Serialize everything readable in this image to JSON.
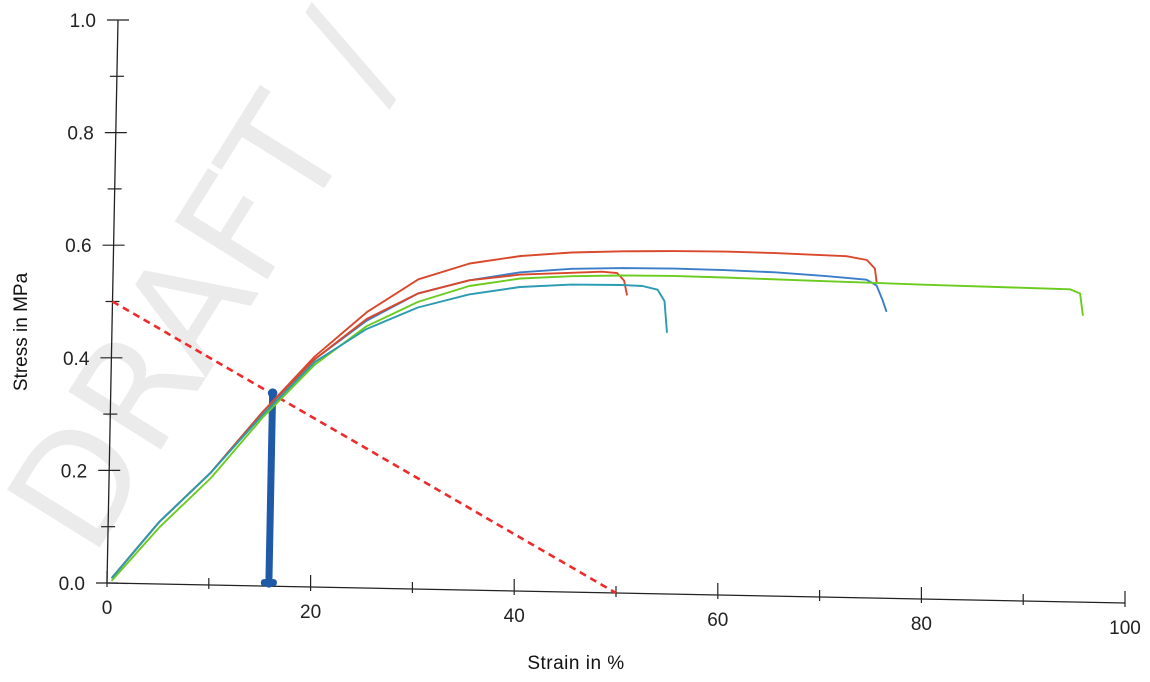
{
  "chart_data": {
    "type": "line",
    "xlabel": "Strain in %",
    "ylabel": "Stress in MPa",
    "xlim": [
      0,
      100
    ],
    "ylim": [
      0,
      1.0
    ],
    "x_ticks": [
      "0",
      "20",
      "40",
      "60",
      "80",
      "100"
    ],
    "y_ticks": [
      "0.0",
      "0.2",
      "0.4",
      "0.6",
      "0.8",
      "1.0"
    ],
    "grid": false,
    "watermark": "DRAFT / CO",
    "series": [
      {
        "color": "#d9482b",
        "points": [
          [
            0.5,
            0.01
          ],
          [
            5,
            0.11
          ],
          [
            10,
            0.2
          ],
          [
            15,
            0.31
          ],
          [
            20,
            0.41
          ],
          [
            25,
            0.49
          ],
          [
            30,
            0.55
          ],
          [
            35,
            0.58
          ],
          [
            40,
            0.595
          ],
          [
            45,
            0.603
          ],
          [
            50,
            0.607
          ],
          [
            55,
            0.609
          ],
          [
            60,
            0.61
          ],
          [
            65,
            0.609
          ],
          [
            70,
            0.607
          ],
          [
            72,
            0.606
          ],
          [
            74,
            0.6
          ],
          [
            74.8,
            0.585
          ],
          [
            75,
            0.56
          ]
        ]
      },
      {
        "color": "#3a7dc9",
        "points": [
          [
            0.5,
            0.01
          ],
          [
            5,
            0.11
          ],
          [
            10,
            0.2
          ],
          [
            15,
            0.31
          ],
          [
            20,
            0.405
          ],
          [
            25,
            0.475
          ],
          [
            30,
            0.525
          ],
          [
            35,
            0.55
          ],
          [
            40,
            0.566
          ],
          [
            45,
            0.574
          ],
          [
            50,
            0.577
          ],
          [
            55,
            0.578
          ],
          [
            60,
            0.577
          ],
          [
            65,
            0.575
          ],
          [
            70,
            0.57
          ],
          [
            74,
            0.565
          ],
          [
            75,
            0.555
          ],
          [
            75.6,
            0.53
          ],
          [
            76,
            0.51
          ]
        ]
      },
      {
        "color": "#d9482b",
        "points": [
          [
            0.5,
            0.01
          ],
          [
            5,
            0.11
          ],
          [
            10,
            0.2
          ],
          [
            15,
            0.31
          ],
          [
            20,
            0.405
          ],
          [
            25,
            0.478
          ],
          [
            30,
            0.525
          ],
          [
            35,
            0.55
          ],
          [
            40,
            0.562
          ],
          [
            45,
            0.567
          ],
          [
            48,
            0.57
          ],
          [
            49.5,
            0.568
          ],
          [
            50.2,
            0.555
          ],
          [
            50.5,
            0.53
          ]
        ]
      },
      {
        "color": "#6bcc1f",
        "points": [
          [
            0.5,
            0.005
          ],
          [
            5,
            0.1
          ],
          [
            10,
            0.19
          ],
          [
            15,
            0.3
          ],
          [
            20,
            0.395
          ],
          [
            25,
            0.465
          ],
          [
            30,
            0.51
          ],
          [
            35,
            0.54
          ],
          [
            40,
            0.555
          ],
          [
            45,
            0.561
          ],
          [
            50,
            0.564
          ],
          [
            55,
            0.565
          ],
          [
            60,
            0.564
          ],
          [
            70,
            0.561
          ],
          [
            80,
            0.558
          ],
          [
            90,
            0.556
          ],
          [
            94,
            0.555
          ],
          [
            95,
            0.548
          ],
          [
            95.3,
            0.51
          ]
        ]
      },
      {
        "color": "#2a9bb0",
        "points": [
          [
            0.5,
            0.01
          ],
          [
            5,
            0.11
          ],
          [
            10,
            0.2
          ],
          [
            15,
            0.305
          ],
          [
            20,
            0.4
          ],
          [
            25,
            0.46
          ],
          [
            30,
            0.5
          ],
          [
            35,
            0.525
          ],
          [
            40,
            0.54
          ],
          [
            45,
            0.546
          ],
          [
            50,
            0.547
          ],
          [
            52,
            0.546
          ],
          [
            53.5,
            0.54
          ],
          [
            54.2,
            0.52
          ],
          [
            54.5,
            0.465
          ]
        ]
      }
    ],
    "annotations": [
      {
        "type": "dashed-line",
        "color": "#ee2a2a",
        "points": [
          [
            0,
            0.5
          ],
          [
            50,
            0.0
          ]
        ]
      },
      {
        "type": "vertical-bar",
        "color": "#1f5aa8",
        "points": [
          [
            15.9,
            0.0
          ],
          [
            15.9,
            0.343
          ]
        ]
      }
    ]
  }
}
